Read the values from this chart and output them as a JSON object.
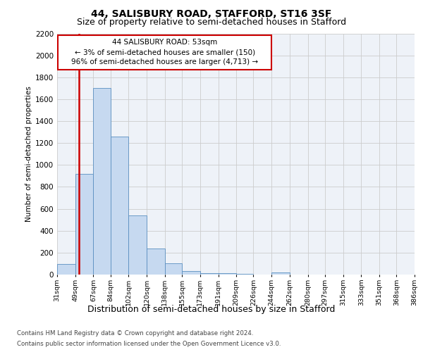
{
  "title": "44, SALISBURY ROAD, STAFFORD, ST16 3SF",
  "subtitle": "Size of property relative to semi-detached houses in Stafford",
  "xlabel": "Distribution of semi-detached houses by size in Stafford",
  "ylabel": "Number of semi-detached properties",
  "footnote1": "Contains HM Land Registry data © Crown copyright and database right 2024.",
  "footnote2": "Contains public sector information licensed under the Open Government Licence v3.0.",
  "annotation_title": "44 SALISBURY ROAD: 53sqm",
  "annotation_line1": "← 3% of semi-detached houses are smaller (150)",
  "annotation_line2": "96% of semi-detached houses are larger (4,713) →",
  "property_size": 53,
  "bar_edges": [
    31,
    49,
    67,
    84,
    102,
    120,
    138,
    155,
    173,
    191,
    209,
    226,
    244,
    262,
    280,
    297,
    315,
    333,
    351,
    368,
    386
  ],
  "bar_labels": [
    "31sqm",
    "49sqm",
    "67sqm",
    "84sqm",
    "102sqm",
    "120sqm",
    "138sqm",
    "155sqm",
    "173sqm",
    "191sqm",
    "209sqm",
    "226sqm",
    "244sqm",
    "262sqm",
    "280sqm",
    "297sqm",
    "315sqm",
    "333sqm",
    "351sqm",
    "368sqm",
    "386sqm"
  ],
  "bar_heights": [
    95,
    920,
    1700,
    1260,
    540,
    235,
    100,
    35,
    15,
    10,
    5,
    2,
    20,
    0,
    0,
    0,
    0,
    0,
    0,
    0
  ],
  "bar_color": "#c6d9f0",
  "bar_edge_color": "#5a8fc0",
  "vline_color": "#cc0000",
  "vline_x": 53,
  "annotation_box_color": "#cc0000",
  "ylim": [
    0,
    2200
  ],
  "yticks": [
    0,
    200,
    400,
    600,
    800,
    1000,
    1200,
    1400,
    1600,
    1800,
    2000,
    2200
  ],
  "grid_color": "#cccccc",
  "bg_color": "#eef2f8",
  "title_fontsize": 10,
  "subtitle_fontsize": 9
}
